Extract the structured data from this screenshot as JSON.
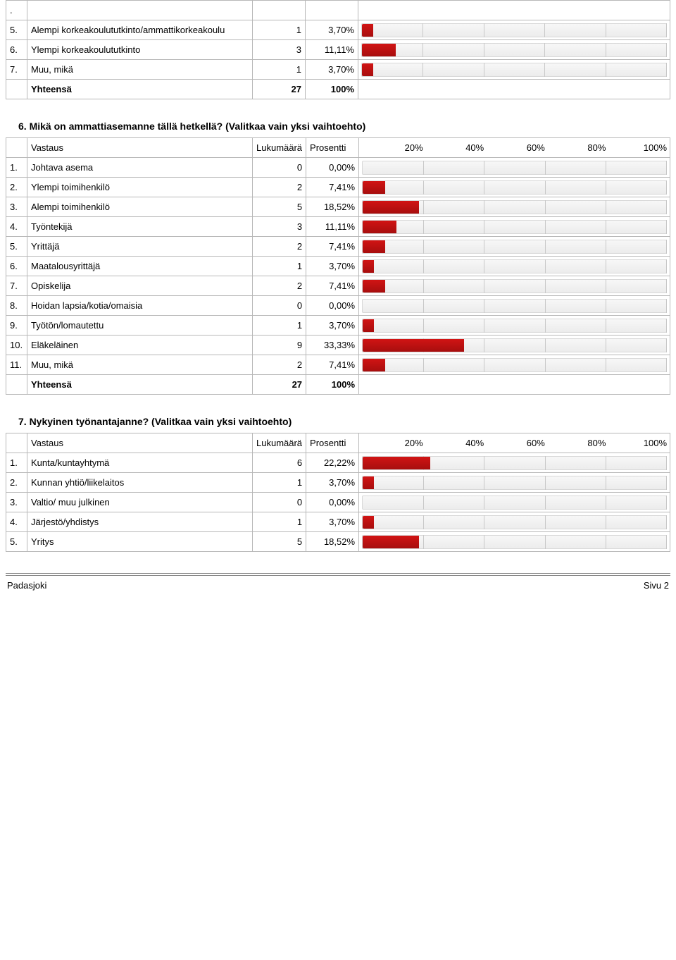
{
  "colors": {
    "bar_fill": "#b71212",
    "bar_bg": "#f0f0f0",
    "border": "#b8b8b8"
  },
  "axis_ticks": [
    20,
    40,
    60,
    80,
    100
  ],
  "section5": {
    "rows": [
      {
        "idx": ".",
        "label": "",
        "count": "",
        "pct": "",
        "bar": null
      },
      {
        "idx": "5.",
        "label": "Alempi korkeakoulututkinto/ammattikorkeakoulu",
        "count": "1",
        "pct": "3,70%",
        "bar": 3.7
      },
      {
        "idx": "6.",
        "label": "Ylempi korkeakoulututkinto",
        "count": "3",
        "pct": "11,11%",
        "bar": 11.11
      },
      {
        "idx": "7.",
        "label": "Muu, mikä",
        "count": "1",
        "pct": "3,70%",
        "bar": 3.7
      }
    ],
    "total_label": "Yhteensä",
    "total_count": "27",
    "total_pct": "100%"
  },
  "section6": {
    "title": "6. Mikä on ammattiasemanne tällä hetkellä? (Valitkaa vain yksi vaihtoehto)",
    "hdr_answer": "Vastaus",
    "hdr_count": "Lukumäärä",
    "hdr_pct": "Prosentti",
    "hdr_20": "20%",
    "hdr_40": "40%",
    "hdr_60": "60%",
    "hdr_80": "80%",
    "hdr_100": "100%",
    "rows": [
      {
        "idx": "1.",
        "label": "Johtava asema",
        "count": "0",
        "pct": "0,00%",
        "bar": 0
      },
      {
        "idx": "2.",
        "label": "Ylempi toimihenkilö",
        "count": "2",
        "pct": "7,41%",
        "bar": 7.41
      },
      {
        "idx": "3.",
        "label": "Alempi toimihenkilö",
        "count": "5",
        "pct": "18,52%",
        "bar": 18.52
      },
      {
        "idx": "4.",
        "label": "Työntekijä",
        "count": "3",
        "pct": "11,11%",
        "bar": 11.11
      },
      {
        "idx": "5.",
        "label": "Yrittäjä",
        "count": "2",
        "pct": "7,41%",
        "bar": 7.41
      },
      {
        "idx": "6.",
        "label": "Maatalousyrittäjä",
        "count": "1",
        "pct": "3,70%",
        "bar": 3.7
      },
      {
        "idx": "7.",
        "label": "Opiskelija",
        "count": "2",
        "pct": "7,41%",
        "bar": 7.41
      },
      {
        "idx": "8.",
        "label": "Hoidan lapsia/kotia/omaisia",
        "count": "0",
        "pct": "0,00%",
        "bar": 0
      },
      {
        "idx": "9.",
        "label": "Työtön/lomautettu",
        "count": "1",
        "pct": "3,70%",
        "bar": 3.7
      },
      {
        "idx": "10.",
        "label": "Eläkeläinen",
        "count": "9",
        "pct": "33,33%",
        "bar": 33.33
      },
      {
        "idx": "11.",
        "label": "Muu, mikä",
        "count": "2",
        "pct": "7,41%",
        "bar": 7.41
      }
    ],
    "total_label": "Yhteensä",
    "total_count": "27",
    "total_pct": "100%"
  },
  "section7": {
    "title": "7. Nykyinen työnantajanne? (Valitkaa vain yksi vaihtoehto)",
    "hdr_answer": "Vastaus",
    "hdr_count": "Lukumäärä",
    "hdr_pct": "Prosentti",
    "hdr_20": "20%",
    "hdr_40": "40%",
    "hdr_60": "60%",
    "hdr_80": "80%",
    "hdr_100": "100%",
    "rows": [
      {
        "idx": "1.",
        "label": "Kunta/kuntayhtymä",
        "count": "6",
        "pct": "22,22%",
        "bar": 22.22
      },
      {
        "idx": "2.",
        "label": "Kunnan yhtiö/liikelaitos",
        "count": "1",
        "pct": "3,70%",
        "bar": 3.7
      },
      {
        "idx": "3.",
        "label": "Valtio/ muu julkinen",
        "count": "0",
        "pct": "0,00%",
        "bar": 0
      },
      {
        "idx": "4.",
        "label": "Järjestö/yhdistys",
        "count": "1",
        "pct": "3,70%",
        "bar": 3.7
      },
      {
        "idx": "5.",
        "label": "Yritys",
        "count": "5",
        "pct": "18,52%",
        "bar": 18.52
      }
    ]
  },
  "footer": {
    "left": "Padasjoki",
    "right": "Sivu 2"
  }
}
